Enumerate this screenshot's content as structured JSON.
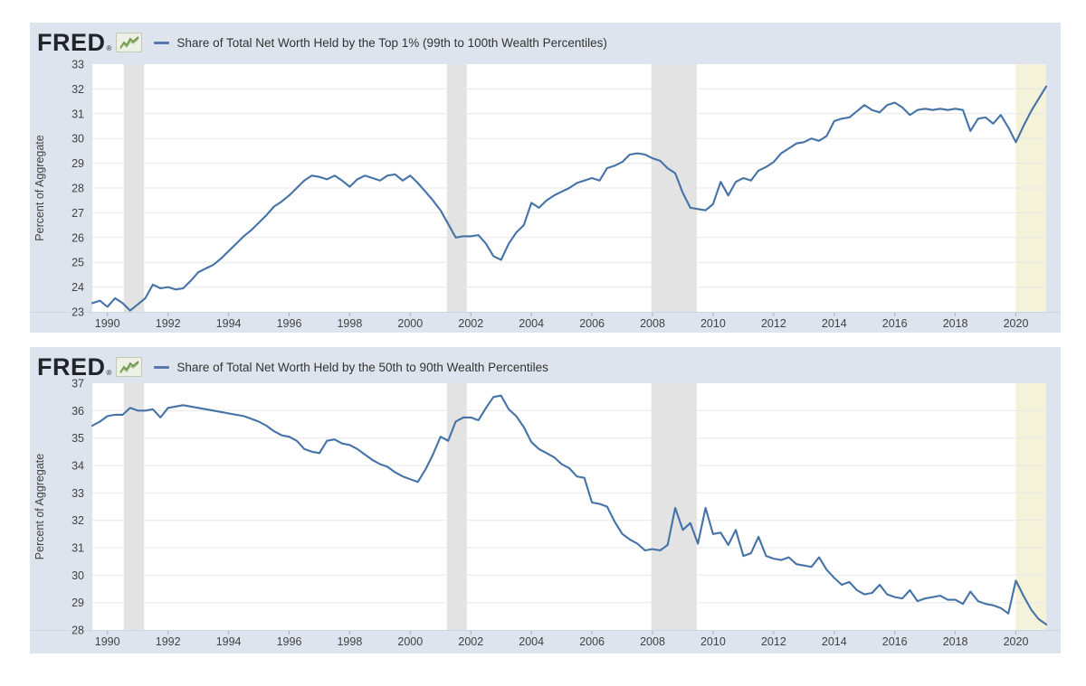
{
  "colors": {
    "panel_bg": "#dde4ee",
    "plot_bg": "#ffffff",
    "line": "#4572a7",
    "grid": "#e7e7e7",
    "axis_line": "#ccd4e0",
    "tick": "#a9b3c2",
    "axis_text": "#424242",
    "recession_bg": "#e3e3e3",
    "recent_bg": "#f5f2da",
    "legend_swatch": "#5878aa",
    "logo_text": "#21242a",
    "sparkline_green": "#6f9648"
  },
  "chart_data": [
    {
      "type": "line",
      "logo": "FRED",
      "logo_reg": "®",
      "legend_label": "Share of Total Net Worth Held by the Top 1% (99th to 100th Wealth Percentiles)",
      "title": "Share of Total Net Worth Held by the Top 1% (99th to 100th Wealth Percentiles)",
      "ylabel": "Percent of Aggregate",
      "ymin": 23,
      "ymax": 33,
      "ystep": 1,
      "x_start": 1989.5,
      "x_step": 0.25,
      "x_end": 2021.0,
      "xticks": [
        1990,
        1992,
        1994,
        1996,
        1998,
        2000,
        2002,
        2004,
        2006,
        2008,
        2010,
        2012,
        2014,
        2016,
        2018,
        2020
      ],
      "recessions": [
        [
          1990.54,
          1991.21
        ],
        [
          2001.21,
          2001.87
        ],
        [
          2007.96,
          2009.46
        ]
      ],
      "recent_shading": [
        2020.0,
        2021.0
      ],
      "grid": true,
      "legend_position": "top",
      "values": [
        23.35,
        23.45,
        23.2,
        23.55,
        23.35,
        23.05,
        23.3,
        23.55,
        24.1,
        23.95,
        24.0,
        23.9,
        23.95,
        24.25,
        24.6,
        24.75,
        24.9,
        25.15,
        25.45,
        25.75,
        26.05,
        26.3,
        26.6,
        26.9,
        27.25,
        27.45,
        27.7,
        28.0,
        28.3,
        28.5,
        28.45,
        28.35,
        28.5,
        28.3,
        28.05,
        28.35,
        28.5,
        28.4,
        28.3,
        28.5,
        28.55,
        28.3,
        28.5,
        28.2,
        27.85,
        27.5,
        27.1,
        26.55,
        26.0,
        26.05,
        26.05,
        26.1,
        25.75,
        25.25,
        25.1,
        25.75,
        26.2,
        26.5,
        27.4,
        27.2,
        27.5,
        27.7,
        27.85,
        28.0,
        28.2,
        28.3,
        28.4,
        28.3,
        28.8,
        28.9,
        29.05,
        29.35,
        29.4,
        29.35,
        29.2,
        29.1,
        28.8,
        28.6,
        27.8,
        27.2,
        27.15,
        27.1,
        27.35,
        28.25,
        27.7,
        28.25,
        28.4,
        28.3,
        28.7,
        28.85,
        29.05,
        29.4,
        29.6,
        29.8,
        29.85,
        30.0,
        29.9,
        30.1,
        30.7,
        30.8,
        30.85,
        31.1,
        31.35,
        31.15,
        31.05,
        31.35,
        31.45,
        31.25,
        30.95,
        31.15,
        31.2,
        31.15,
        31.2,
        31.15,
        31.2,
        31.15,
        30.3,
        30.8,
        30.85,
        30.6,
        30.95,
        30.45,
        29.85,
        30.5,
        31.1,
        31.6,
        32.1
      ]
    },
    {
      "type": "line",
      "logo": "FRED",
      "logo_reg": "®",
      "legend_label": "Share of Total Net Worth Held by the 50th to 90th Wealth Percentiles",
      "title": "Share of Total Net Worth Held by the 50th to 90th Wealth Percentiles",
      "ylabel": "Percent of Aggregate",
      "ymin": 28,
      "ymax": 37,
      "ystep": 1,
      "x_start": 1989.5,
      "x_step": 0.25,
      "x_end": 2021.0,
      "xticks": [
        1990,
        1992,
        1994,
        1996,
        1998,
        2000,
        2002,
        2004,
        2006,
        2008,
        2010,
        2012,
        2014,
        2016,
        2018,
        2020
      ],
      "recessions": [
        [
          1990.54,
          1991.21
        ],
        [
          2001.21,
          2001.87
        ],
        [
          2007.96,
          2009.46
        ]
      ],
      "recent_shading": [
        2020.0,
        2021.0
      ],
      "grid": true,
      "legend_position": "top",
      "values": [
        35.45,
        35.6,
        35.8,
        35.85,
        35.85,
        36.1,
        36.0,
        36.0,
        36.05,
        35.75,
        36.1,
        36.15,
        36.2,
        36.15,
        36.1,
        36.05,
        36.0,
        35.95,
        35.9,
        35.85,
        35.8,
        35.7,
        35.6,
        35.45,
        35.25,
        35.1,
        35.05,
        34.9,
        34.6,
        34.5,
        34.45,
        34.9,
        34.95,
        34.8,
        34.75,
        34.6,
        34.4,
        34.2,
        34.05,
        33.95,
        33.75,
        33.6,
        33.5,
        33.4,
        33.85,
        34.4,
        35.05,
        34.9,
        35.6,
        35.75,
        35.75,
        35.65,
        36.1,
        36.5,
        36.55,
        36.05,
        35.8,
        35.4,
        34.85,
        34.6,
        34.45,
        34.3,
        34.05,
        33.9,
        33.6,
        33.55,
        32.65,
        32.6,
        32.5,
        31.95,
        31.5,
        31.3,
        31.15,
        30.9,
        30.95,
        30.9,
        31.1,
        32.45,
        31.65,
        31.9,
        31.15,
        32.45,
        31.5,
        31.55,
        31.1,
        31.65,
        30.7,
        30.8,
        31.4,
        30.7,
        30.6,
        30.55,
        30.65,
        30.4,
        30.35,
        30.3,
        30.65,
        30.2,
        29.9,
        29.65,
        29.75,
        29.45,
        29.3,
        29.35,
        29.65,
        29.3,
        29.2,
        29.15,
        29.45,
        29.05,
        29.15,
        29.2,
        29.25,
        29.1,
        29.1,
        28.95,
        29.4,
        29.05,
        28.95,
        28.9,
        28.8,
        28.6,
        29.8,
        29.25,
        28.75,
        28.4,
        28.2
      ]
    }
  ]
}
